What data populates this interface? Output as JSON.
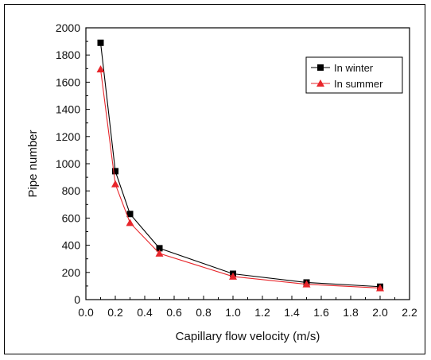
{
  "chart_data": {
    "type": "line",
    "xlabel": "Capillary flow velocity (m/s)",
    "ylabel": "Pipe number",
    "xlim": [
      0.0,
      2.2
    ],
    "ylim": [
      0,
      2000
    ],
    "xticks": [
      "0.0",
      "0.2",
      "0.4",
      "0.6",
      "0.8",
      "1.0",
      "1.2",
      "1.4",
      "1.6",
      "1.8",
      "2.0",
      "2.2"
    ],
    "yticks": [
      "0",
      "200",
      "400",
      "600",
      "800",
      "1000",
      "1200",
      "1400",
      "1600",
      "1800",
      "2000"
    ],
    "x": [
      0.1,
      0.2,
      0.3,
      0.5,
      1.0,
      1.5,
      2.0
    ],
    "series": [
      {
        "name": "In winter",
        "values": [
          1890,
          945,
          630,
          378,
          190,
          126,
          95
        ],
        "color": "#000000",
        "marker": "square"
      },
      {
        "name": "In summer",
        "values": [
          1695,
          850,
          565,
          340,
          170,
          113,
          85
        ],
        "color": "#e8262b",
        "marker": "triangle"
      }
    ],
    "legend": "top-right",
    "grid": false
  }
}
